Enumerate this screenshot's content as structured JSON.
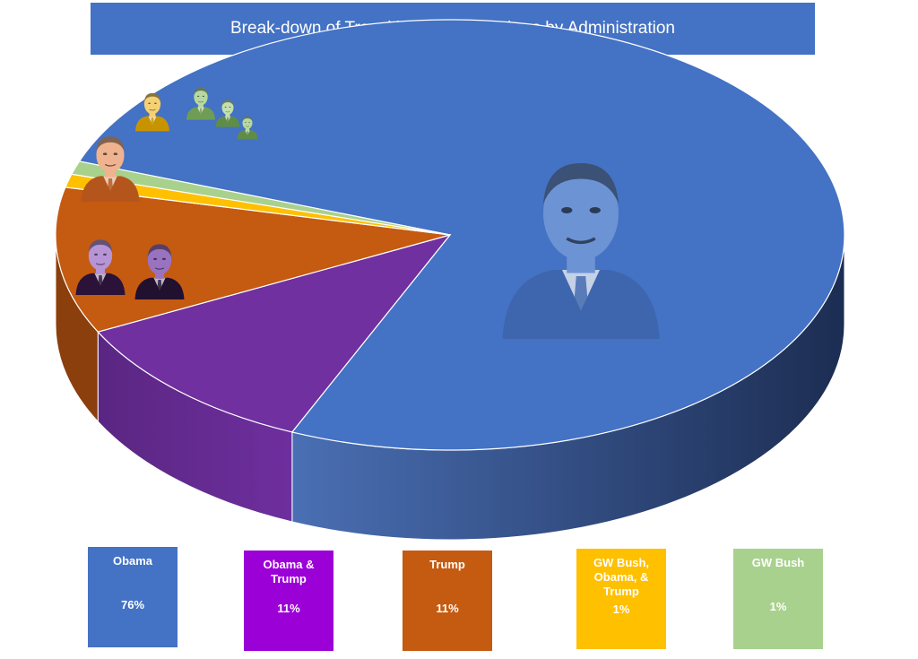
{
  "chart_data": {
    "type": "pie",
    "title": "Break-down of Transition Team Members by Administration",
    "slices": [
      {
        "name": "Obama",
        "value": 76,
        "label": "76%",
        "color": "#4472c4"
      },
      {
        "name": "Obama & Trump",
        "value": 11,
        "label": "11%",
        "color": "#7030a0"
      },
      {
        "name": "Trump",
        "value": 11,
        "label": "11%",
        "color": "#c55a11"
      },
      {
        "name": "GW Bush, Obama, & Trump",
        "value": 1,
        "label": "1%",
        "color": "#ffc000"
      },
      {
        "name": "GW Bush",
        "value": 1,
        "label": "1%",
        "color": "#a9d18e"
      }
    ],
    "legend_placement": "bottom",
    "style": "3d-exploded"
  },
  "portraits": [
    {
      "slice": "Obama",
      "icon": "obama-portrait-icon"
    },
    {
      "slice": "Obama & Trump",
      "icon": "trump-and-obama-portrait-icon"
    },
    {
      "slice": "Trump",
      "icon": "trump-portrait-icon"
    },
    {
      "slice": "GW Bush, Obama, & Trump",
      "icon": "bush-portrait-icon"
    },
    {
      "slice": "GW Bush",
      "icon": "bush-obama-trump-portrait-icon"
    }
  ]
}
